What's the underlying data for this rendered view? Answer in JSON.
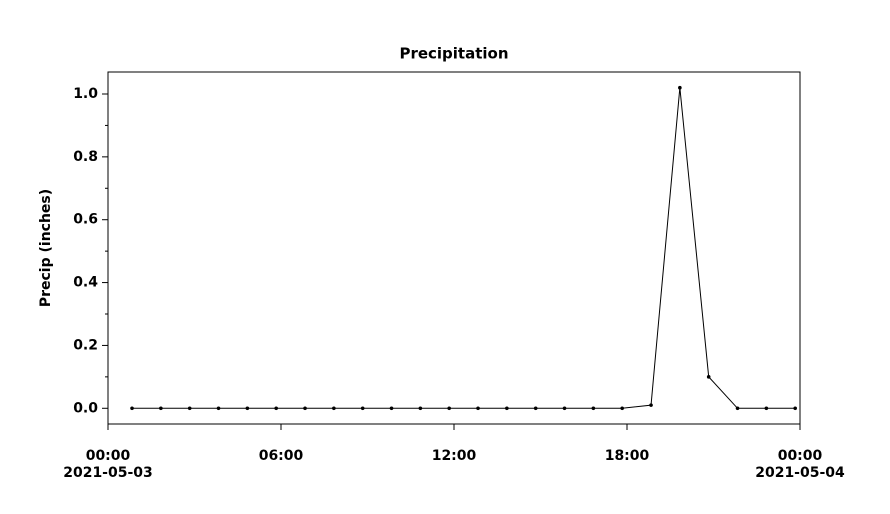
{
  "chart_data": {
    "type": "line",
    "title": "Precipitation",
    "y_label": "Precip (inches)",
    "x": [
      "2021-05-03 00:50",
      "2021-05-03 01:50",
      "2021-05-03 02:50",
      "2021-05-03 03:50",
      "2021-05-03 04:50",
      "2021-05-03 05:50",
      "2021-05-03 06:50",
      "2021-05-03 07:50",
      "2021-05-03 08:50",
      "2021-05-03 09:50",
      "2021-05-03 10:50",
      "2021-05-03 11:50",
      "2021-05-03 12:50",
      "2021-05-03 13:50",
      "2021-05-03 14:50",
      "2021-05-03 15:50",
      "2021-05-03 16:50",
      "2021-05-03 17:50",
      "2021-05-03 18:50",
      "2021-05-03 19:50",
      "2021-05-03 20:50",
      "2021-05-03 21:50",
      "2021-05-03 22:50",
      "2021-05-03 23:50"
    ],
    "series": [
      {
        "name": "Precip",
        "color": "#000000",
        "values": [
          0,
          0,
          0,
          0,
          0,
          0,
          0,
          0,
          0,
          0,
          0,
          0,
          0,
          0,
          0,
          0,
          0,
          0,
          0.01,
          1.02,
          0.1,
          0,
          0,
          0
        ]
      }
    ],
    "xlim": [
      "2021-05-03 00:00",
      "2021-05-04 00:00"
    ],
    "xticks": [
      {
        "value": "2021-05-03 00:00",
        "label": "00:00",
        "date": "2021-05-03"
      },
      {
        "value": "2021-05-03 06:00",
        "label": "06:00"
      },
      {
        "value": "2021-05-03 12:00",
        "label": "12:00"
      },
      {
        "value": "2021-05-03 18:00",
        "label": "18:00"
      },
      {
        "value": "2021-05-04 00:00",
        "label": "00:00",
        "date": "2021-05-04"
      }
    ],
    "ylim": [
      -0.05,
      1.07
    ],
    "yticks": [
      {
        "value": 0,
        "label": "0.0"
      },
      0.2,
      0.4,
      0.6,
      0.8,
      {
        "value": 1,
        "label": "1.0"
      }
    ],
    "y_minor_ticks": [
      0.1,
      0.3,
      0.5,
      0.7,
      0.9
    ],
    "grid": false
  }
}
